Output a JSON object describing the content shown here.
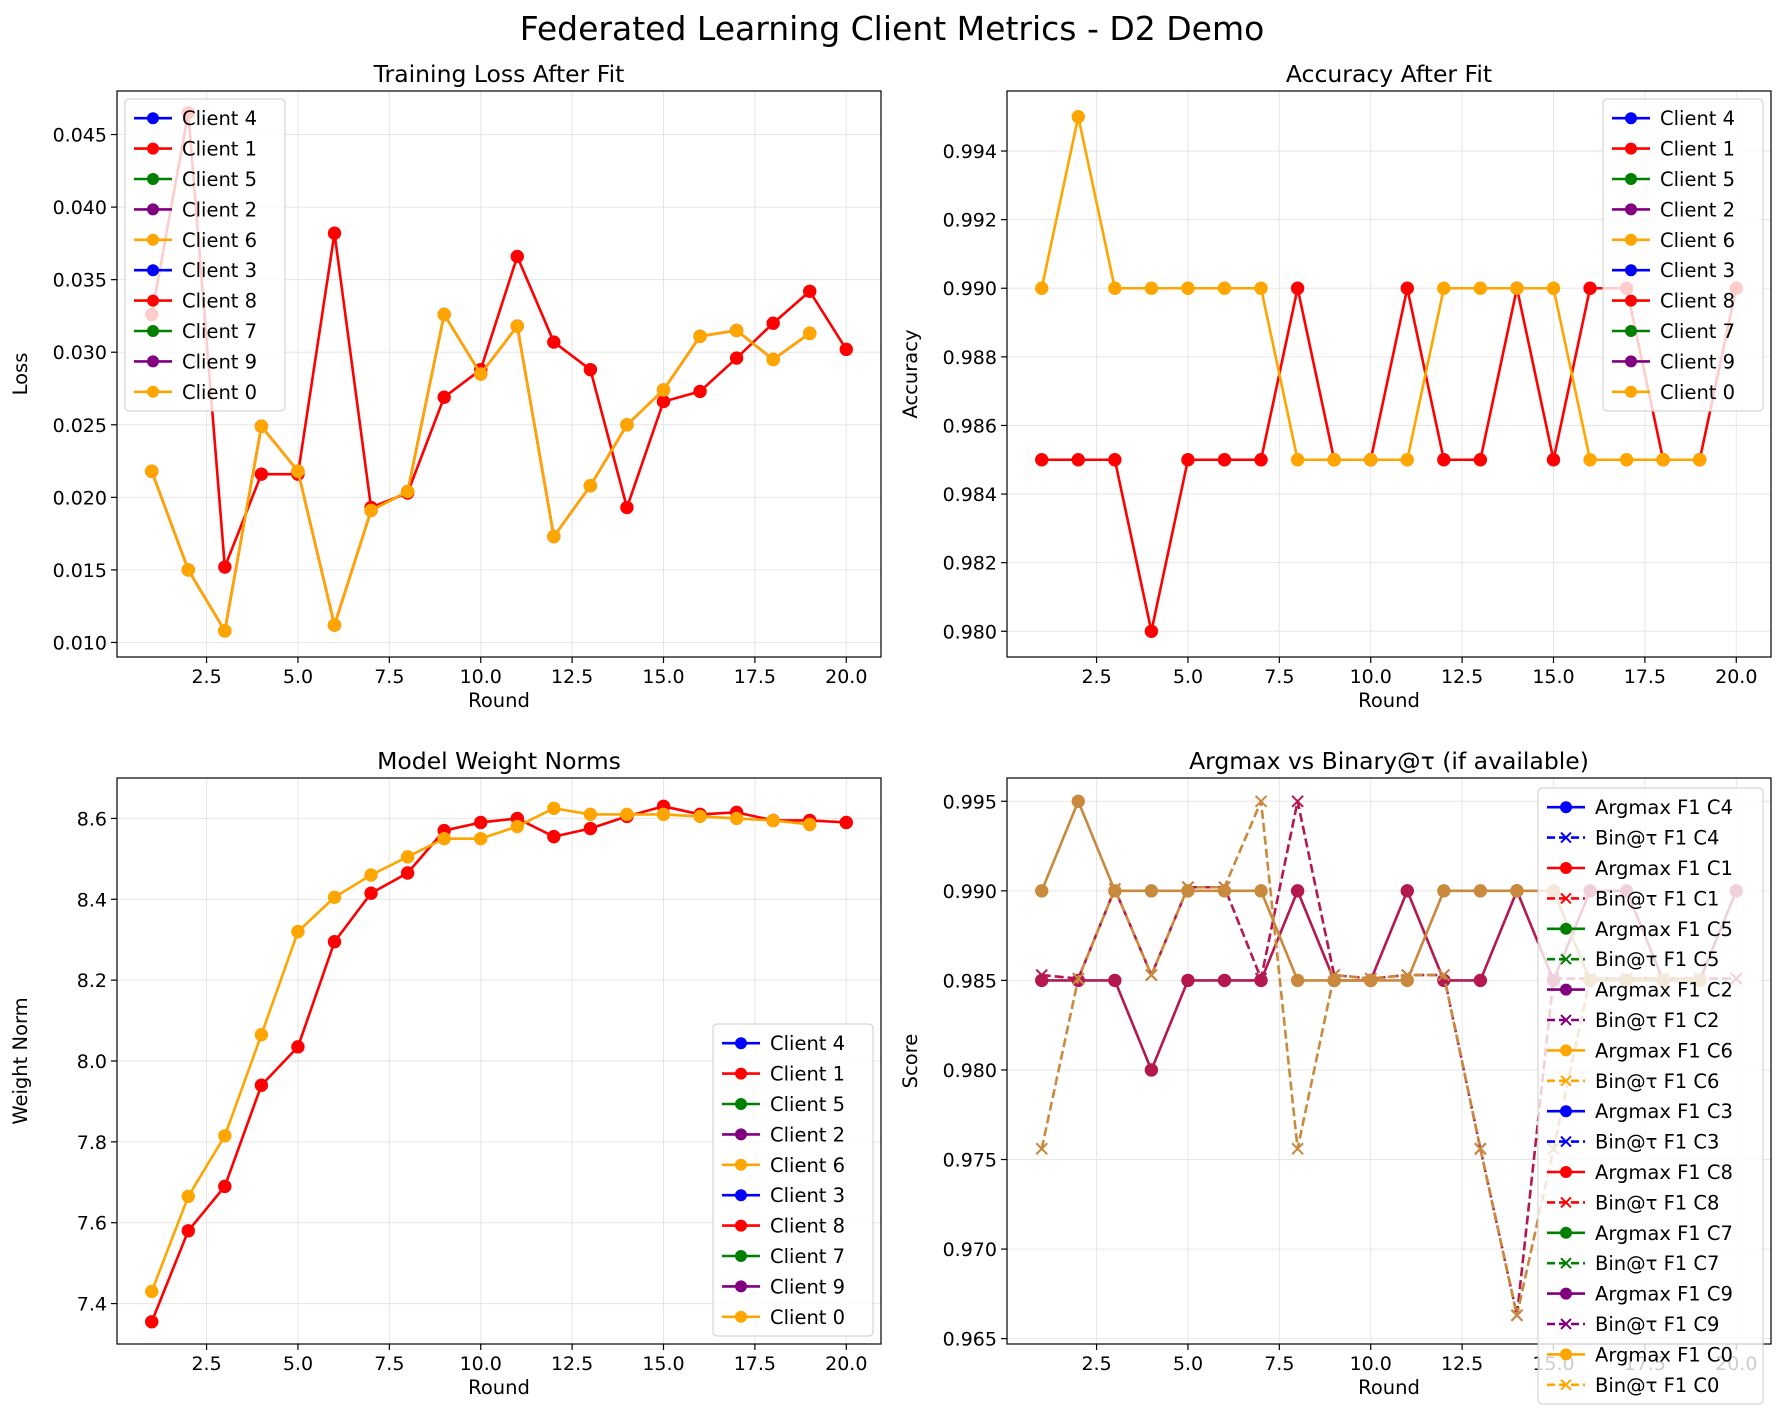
{
  "suptitle": "Federated Learning Client Metrics - D2 Demo",
  "colors": {
    "Client 4": "#0000ff",
    "Client 1": "#ff0000",
    "Client 5": "#008000",
    "Client 2": "#800080",
    "Client 6": "#ffa500",
    "Client 3": "#0000ff",
    "Client 8": "#ff0000",
    "Client 7": "#008000",
    "Client 9": "#800080",
    "Client 0": "#ffa500",
    "grid": "#e6e6e6",
    "axis": "#000000"
  },
  "chart_data": [
    {
      "id": "loss",
      "type": "line",
      "title": "Training Loss After Fit",
      "xlabel": "Round",
      "ylabel": "Loss",
      "xlim": [
        0.05,
        20.95
      ],
      "ylim": [
        0.009,
        0.048
      ],
      "xticks": [
        2.5,
        5.0,
        7.5,
        10.0,
        12.5,
        15.0,
        17.5,
        20.0
      ],
      "yticks": [
        0.01,
        0.015,
        0.02,
        0.025,
        0.03,
        0.035,
        0.04,
        0.045
      ],
      "ytick_labels": [
        "0.010",
        "0.015",
        "0.020",
        "0.025",
        "0.030",
        "0.035",
        "0.040",
        "0.045"
      ],
      "grid": true,
      "legend_position": "upper-left",
      "legend": [
        "Client 4",
        "Client 1",
        "Client 5",
        "Client 2",
        "Client 6",
        "Client 3",
        "Client 8",
        "Client 7",
        "Client 9",
        "Client 0"
      ],
      "series": [
        {
          "name": "Client 1",
          "color": "#ff0000",
          "x": [
            1,
            2,
            3,
            4,
            5,
            6,
            7,
            8,
            9,
            10,
            11,
            12,
            13,
            14,
            15,
            16,
            17,
            18,
            19,
            20
          ],
          "y": [
            0.0218,
            0.015,
            0.0108,
            0.0249,
            0.0218,
            0.0112,
            0.0191,
            0.0204,
            0.0326,
            0.0285,
            0.0318,
            0.0173,
            0.0208,
            0.025,
            0.0274,
            0.0311,
            0.0315,
            0.0295,
            0.0313,
            null
          ]
        },
        {
          "name": "Client 8",
          "color": "#ff0000",
          "x": [
            1,
            2,
            3,
            4,
            5,
            6,
            7,
            8,
            9,
            10,
            11,
            12,
            13,
            14,
            15,
            16,
            17,
            18,
            19,
            20
          ],
          "y": [
            0.0326,
            0.0465,
            0.0152,
            0.0216,
            0.0216,
            0.0382,
            0.0193,
            0.0203,
            0.0269,
            0.0288,
            0.0366,
            0.0307,
            0.0288,
            0.0193,
            0.0266,
            0.0273,
            0.0296,
            0.032,
            0.0342,
            0.0302
          ]
        },
        {
          "name": "Client 0",
          "color": "#ffa500",
          "x": [
            1,
            2,
            3,
            4,
            5,
            6,
            7,
            8,
            9,
            10,
            11,
            12,
            13,
            14,
            15,
            16,
            17,
            18,
            19
          ],
          "y": [
            0.0218,
            0.015,
            0.0108,
            0.0249,
            0.0218,
            0.0112,
            0.0191,
            0.0204,
            0.0326,
            0.0285,
            0.0318,
            0.0173,
            0.0208,
            0.025,
            0.0274,
            0.0311,
            0.0315,
            0.0295,
            0.0313
          ]
        }
      ]
    },
    {
      "id": "acc",
      "type": "line",
      "title": "Accuracy After Fit",
      "xlabel": "Round",
      "ylabel": "Accuracy",
      "xlim": [
        0.05,
        20.95
      ],
      "ylim": [
        0.97925,
        0.99575
      ],
      "xticks": [
        2.5,
        5.0,
        7.5,
        10.0,
        12.5,
        15.0,
        17.5,
        20.0
      ],
      "yticks": [
        0.98,
        0.982,
        0.984,
        0.986,
        0.988,
        0.99,
        0.992,
        0.994
      ],
      "ytick_labels": [
        "0.980",
        "0.982",
        "0.984",
        "0.986",
        "0.988",
        "0.990",
        "0.992",
        "0.994"
      ],
      "grid": true,
      "legend_position": "upper-right",
      "legend": [
        "Client 4",
        "Client 1",
        "Client 5",
        "Client 2",
        "Client 6",
        "Client 3",
        "Client 8",
        "Client 7",
        "Client 9",
        "Client 0"
      ],
      "series": [
        {
          "name": "Client 8",
          "color": "#ff0000",
          "x": [
            1,
            2,
            3,
            4,
            5,
            6,
            7,
            8,
            9,
            10,
            11,
            12,
            13,
            14,
            15,
            16,
            17,
            18,
            19,
            20
          ],
          "y": [
            0.985,
            0.985,
            0.985,
            0.98,
            0.985,
            0.985,
            0.985,
            0.99,
            0.985,
            0.985,
            0.99,
            0.985,
            0.985,
            0.99,
            0.985,
            0.99,
            0.99,
            0.985,
            0.985,
            0.99
          ]
        },
        {
          "name": "Client 0",
          "color": "#ffa500",
          "x": [
            1,
            2,
            3,
            4,
            5,
            6,
            7,
            8,
            9,
            10,
            11,
            12,
            13,
            14,
            15,
            16,
            17,
            18,
            19
          ],
          "y": [
            0.99,
            0.995,
            0.99,
            0.99,
            0.99,
            0.99,
            0.99,
            0.985,
            0.985,
            0.985,
            0.985,
            0.99,
            0.99,
            0.99,
            0.99,
            0.985,
            0.985,
            0.985,
            0.985
          ]
        }
      ]
    },
    {
      "id": "norm",
      "type": "line",
      "title": "Model Weight Norms",
      "xlabel": "Round",
      "ylabel": "Weight Norm",
      "xlim": [
        0.05,
        20.95
      ],
      "ylim": [
        7.3,
        8.7
      ],
      "xticks": [
        2.5,
        5.0,
        7.5,
        10.0,
        12.5,
        15.0,
        17.5,
        20.0
      ],
      "yticks": [
        7.4,
        7.6,
        7.8,
        8.0,
        8.2,
        8.4,
        8.6
      ],
      "ytick_labels": [
        "7.4",
        "7.6",
        "7.8",
        "8.0",
        "8.2",
        "8.4",
        "8.6"
      ],
      "grid": true,
      "legend_position": "lower-right",
      "legend": [
        "Client 4",
        "Client 1",
        "Client 5",
        "Client 2",
        "Client 6",
        "Client 3",
        "Client 8",
        "Client 7",
        "Client 9",
        "Client 0"
      ],
      "series": [
        {
          "name": "Client 8",
          "color": "#ff0000",
          "x": [
            1,
            2,
            3,
            4,
            5,
            6,
            7,
            8,
            9,
            10,
            11,
            12,
            13,
            14,
            15,
            16,
            17,
            18,
            19,
            20
          ],
          "y": [
            7.355,
            7.58,
            7.69,
            7.94,
            8.035,
            8.295,
            8.415,
            8.465,
            8.57,
            8.59,
            8.6,
            8.555,
            8.575,
            8.605,
            8.63,
            8.61,
            8.615,
            8.595,
            8.595,
            8.59
          ]
        },
        {
          "name": "Client 0",
          "color": "#ffa500",
          "x": [
            1,
            2,
            3,
            4,
            5,
            6,
            7,
            8,
            9,
            10,
            11,
            12,
            13,
            14,
            15,
            16,
            17,
            18,
            19
          ],
          "y": [
            7.43,
            7.665,
            7.815,
            8.065,
            8.32,
            8.405,
            8.46,
            8.505,
            8.55,
            8.55,
            8.58,
            8.625,
            8.61,
            8.61,
            8.61,
            8.605,
            8.6,
            8.595,
            8.585
          ]
        }
      ]
    },
    {
      "id": "f1",
      "type": "line",
      "title": "Argmax vs Binary@τ (if available)",
      "xlabel": "Round",
      "ylabel": "Score",
      "xlim": [
        0.05,
        20.95
      ],
      "ylim": [
        0.9647,
        0.9963
      ],
      "xticks": [
        2.5,
        5.0,
        7.5,
        10.0,
        12.5,
        15.0,
        17.5,
        20.0
      ],
      "yticks": [
        0.965,
        0.97,
        0.975,
        0.98,
        0.985,
        0.99,
        0.995
      ],
      "ytick_labels": [
        "0.965",
        "0.970",
        "0.975",
        "0.980",
        "0.985",
        "0.990",
        "0.995"
      ],
      "grid": true,
      "legend_position": "right",
      "legend": [
        {
          "label": "Argmax F1 C4",
          "color": "#0000ff",
          "style": "argmax"
        },
        {
          "label": "Bin@τ F1 C4",
          "color": "#0000ff",
          "style": "bin"
        },
        {
          "label": "Argmax F1 C1",
          "color": "#ff0000",
          "style": "argmax"
        },
        {
          "label": "Bin@τ F1 C1",
          "color": "#ff0000",
          "style": "bin"
        },
        {
          "label": "Argmax F1 C5",
          "color": "#008000",
          "style": "argmax"
        },
        {
          "label": "Bin@τ F1 C5",
          "color": "#008000",
          "style": "bin"
        },
        {
          "label": "Argmax F1 C2",
          "color": "#800080",
          "style": "argmax"
        },
        {
          "label": "Bin@τ F1 C2",
          "color": "#800080",
          "style": "bin"
        },
        {
          "label": "Argmax F1 C6",
          "color": "#ffa500",
          "style": "argmax"
        },
        {
          "label": "Bin@τ F1 C6",
          "color": "#ffa500",
          "style": "bin"
        },
        {
          "label": "Argmax F1 C3",
          "color": "#0000ff",
          "style": "argmax"
        },
        {
          "label": "Bin@τ F1 C3",
          "color": "#0000ff",
          "style": "bin"
        },
        {
          "label": "Argmax F1 C8",
          "color": "#ff0000",
          "style": "argmax"
        },
        {
          "label": "Bin@τ F1 C8",
          "color": "#ff0000",
          "style": "bin"
        },
        {
          "label": "Argmax F1 C7",
          "color": "#008000",
          "style": "argmax"
        },
        {
          "label": "Bin@τ F1 C7",
          "color": "#008000",
          "style": "bin"
        },
        {
          "label": "Argmax F1 C9",
          "color": "#800080",
          "style": "argmax"
        },
        {
          "label": "Bin@τ F1 C9",
          "color": "#800080",
          "style": "bin"
        },
        {
          "label": "Argmax F1 C0",
          "color": "#ffa500",
          "style": "argmax"
        },
        {
          "label": "Bin@τ F1 C0",
          "color": "#ffa500",
          "style": "bin"
        }
      ],
      "series": [
        {
          "name": "Bin@τ F1 C9",
          "color": "#b5174f",
          "style": "bin",
          "x": [
            1,
            2,
            3,
            4,
            5,
            6,
            7,
            8,
            9,
            10,
            11,
            12,
            13,
            14,
            15,
            16,
            17,
            18,
            19,
            20
          ],
          "y": [
            0.9853,
            0.9851,
            0.9901,
            0.9853,
            0.9902,
            0.9902,
            0.9851,
            0.995,
            0.9853,
            0.9851,
            0.9853,
            0.9853,
            0.9756,
            0.9663,
            0.9851,
            0.9851,
            0.9851,
            0.9851,
            0.9851,
            0.9851
          ]
        },
        {
          "name": "Argmax F1 C9",
          "color": "#b5174f",
          "style": "argmax",
          "x": [
            1,
            2,
            3,
            4,
            5,
            6,
            7,
            8,
            9,
            10,
            11,
            12,
            13,
            14,
            15,
            16,
            17,
            18,
            19,
            20
          ],
          "y": [
            0.985,
            0.985,
            0.985,
            0.98,
            0.985,
            0.985,
            0.985,
            0.99,
            0.985,
            0.985,
            0.99,
            0.985,
            0.985,
            0.99,
            0.985,
            0.99,
            0.99,
            0.985,
            0.985,
            0.99
          ]
        },
        {
          "name": "Bin@τ F1 C0",
          "color": "#c98a3e",
          "style": "bin",
          "x": [
            1,
            2,
            3,
            4,
            5,
            6,
            7,
            8,
            9,
            10,
            11,
            12,
            13,
            14,
            15,
            16,
            17,
            18,
            19
          ],
          "y": [
            0.9756,
            0.9851,
            0.9901,
            0.9853,
            0.9902,
            0.9902,
            0.995,
            0.9756,
            0.9853,
            0.9851,
            0.9853,
            0.9853,
            0.9756,
            0.9663,
            0.9756,
            0.9851,
            0.9851,
            0.9851,
            0.9851
          ]
        },
        {
          "name": "Argmax F1 C0",
          "color": "#c98a3e",
          "style": "argmax",
          "x": [
            1,
            2,
            3,
            4,
            5,
            6,
            7,
            8,
            9,
            10,
            11,
            12,
            13,
            14,
            15,
            16,
            17,
            18,
            19
          ],
          "y": [
            0.99,
            0.995,
            0.99,
            0.99,
            0.99,
            0.99,
            0.99,
            0.985,
            0.985,
            0.985,
            0.985,
            0.99,
            0.99,
            0.99,
            0.99,
            0.985,
            0.985,
            0.985,
            0.985
          ]
        }
      ]
    }
  ]
}
